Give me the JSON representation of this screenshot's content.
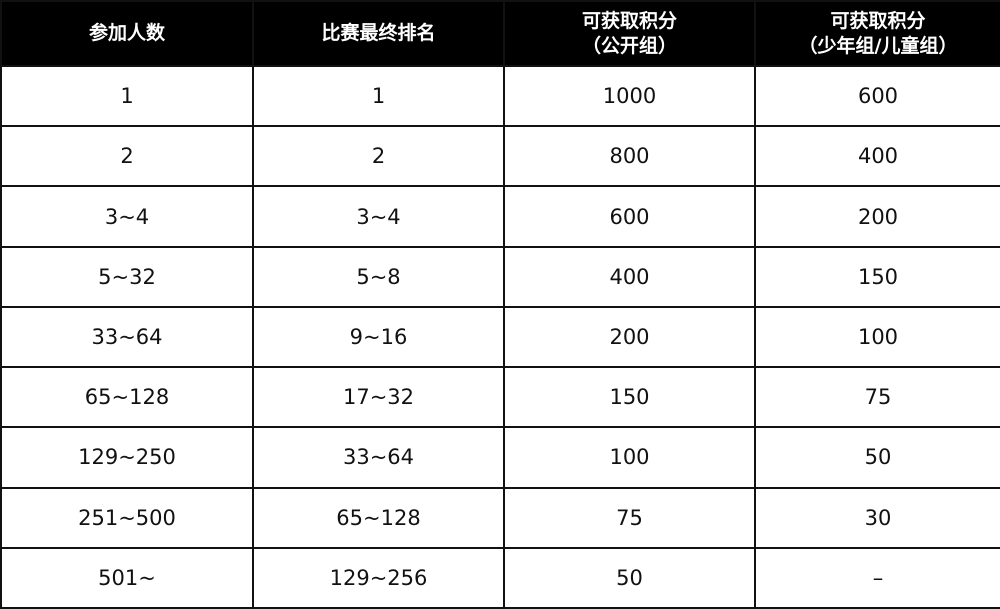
{
  "table": {
    "headers": [
      {
        "line1": "参加人数",
        "line2": ""
      },
      {
        "line1": "比赛最终排名",
        "line2": ""
      },
      {
        "line1": "可获取积分",
        "line2": "（公开组）"
      },
      {
        "line1": "可获取积分",
        "line2": "（少年组/儿童组）"
      }
    ],
    "rows": [
      [
        "1",
        "1",
        "1000",
        "600"
      ],
      [
        "2",
        "2",
        "800",
        "400"
      ],
      [
        "3~4",
        "3~4",
        "600",
        "200"
      ],
      [
        "5~32",
        "5~8",
        "400",
        "150"
      ],
      [
        "33~64",
        "9~16",
        "200",
        "100"
      ],
      [
        "65~128",
        "17~32",
        "150",
        "75"
      ],
      [
        "129~250",
        "33~64",
        "100",
        "50"
      ],
      [
        "251~500",
        "65~128",
        "75",
        "30"
      ],
      [
        "501~",
        "129~256",
        "50",
        "–"
      ]
    ]
  }
}
